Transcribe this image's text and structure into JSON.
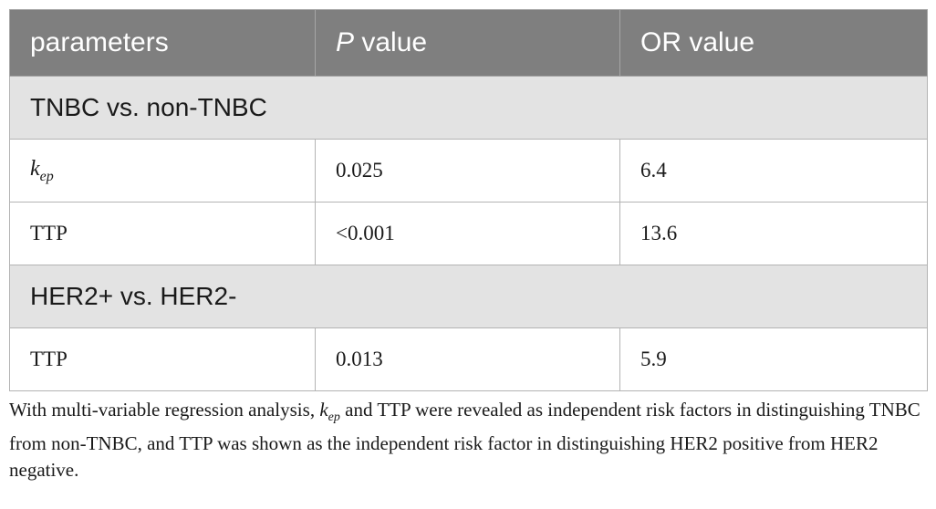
{
  "table": {
    "headers": {
      "col1": "parameters",
      "col2_italic": "P",
      "col2_rest": " value",
      "col3": "OR value"
    },
    "groups": [
      {
        "title": "TNBC vs. non-TNBC",
        "rows": [
          {
            "param_base": "k",
            "param_sub": "ep",
            "p": "0.025",
            "or": "6.4"
          },
          {
            "param": "TTP",
            "p": "<0.001",
            "or": "13.6"
          }
        ]
      },
      {
        "title": "HER2+ vs. HER2-",
        "rows": [
          {
            "param": "TTP",
            "p": "0.013",
            "or": "5.9"
          }
        ]
      }
    ]
  },
  "footnote": {
    "before": "With multi-variable regression analysis, ",
    "kep_base": "k",
    "kep_sub": "ep",
    "after": " and TTP were revealed as independent risk factors in distinguishing TNBC from non-TNBC, and TTP was shown as the independent risk factor in distinguishing HER2 positive from HER2 negative."
  }
}
